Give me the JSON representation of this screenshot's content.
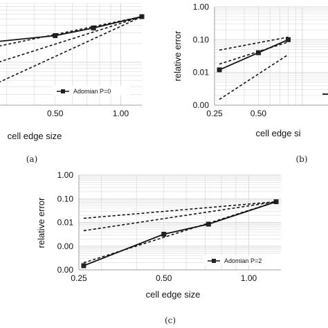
{
  "chart_data": [
    {
      "id": "a",
      "caption": "(a)",
      "type": "line",
      "xscale": "log",
      "yscale": "log",
      "xlabel": "cell edge size",
      "ylabel": "",
      "xticks": [
        "0.50",
        "1.00"
      ],
      "yticks": [],
      "legend": "Adomian P=0",
      "legend_position": "bottom-right",
      "series": [
        {
          "name": "Adomian P=0",
          "style": "solid-square",
          "x": [
            0.25,
            0.5,
            0.75,
            1.25
          ],
          "y": [
            0.21,
            0.27,
            0.36,
            0.55
          ]
        },
        {
          "style": "dashed",
          "x": [
            0.25,
            1.25
          ],
          "y": [
            0.17,
            0.55
          ]
        },
        {
          "style": "dashed",
          "x": [
            0.25,
            1.25
          ],
          "y": [
            0.09,
            0.55
          ]
        },
        {
          "style": "dashed",
          "x": [
            0.25,
            1.25
          ],
          "y": [
            0.04,
            0.55
          ]
        }
      ]
    },
    {
      "id": "b",
      "caption": "(b)",
      "type": "line",
      "xscale": "log",
      "yscale": "log",
      "xlabel": "cell edge si",
      "ylabel": "relative error",
      "xticks": [
        "0.25",
        "0.50"
      ],
      "yticks": [
        "1.00",
        "0.10",
        "0.01",
        "0.00"
      ],
      "series": [
        {
          "style": "solid-square",
          "x": [
            0.27,
            0.5,
            0.8
          ],
          "y": [
            0.012,
            0.04,
            0.1
          ]
        },
        {
          "style": "dashed",
          "x": [
            0.27,
            0.8
          ],
          "y": [
            0.048,
            0.12
          ]
        },
        {
          "style": "dashed",
          "x": [
            0.27,
            0.8
          ],
          "y": [
            0.018,
            0.085
          ]
        },
        {
          "style": "dashed",
          "x": [
            0.27,
            0.8
          ],
          "y": [
            0.0015,
            0.035
          ]
        }
      ]
    },
    {
      "id": "c",
      "caption": "(c)",
      "type": "line",
      "xscale": "log",
      "yscale": "log",
      "xlabel": "cell edge size",
      "ylabel": "relative error",
      "xticks": [
        "0.25",
        "0.50",
        "1.00"
      ],
      "yticks": [
        "1.00",
        "0.10",
        "0.01",
        "0.00",
        "0.00"
      ],
      "legend": "Adomian P=2",
      "legend_position": "bottom-right",
      "series": [
        {
          "name": "Adomian P=2",
          "style": "solid-square",
          "x": [
            0.26,
            0.5,
            0.72,
            1.25
          ],
          "y": [
            0.00015,
            0.0032,
            0.0085,
            0.075
          ]
        },
        {
          "style": "dashed",
          "x": [
            0.26,
            1.25
          ],
          "y": [
            0.015,
            0.075
          ]
        },
        {
          "style": "dashed",
          "x": [
            0.26,
            1.25
          ],
          "y": [
            0.0045,
            0.075
          ]
        },
        {
          "style": "dashed",
          "x": [
            0.26,
            1.25
          ],
          "y": [
            0.0002,
            0.075
          ]
        }
      ]
    }
  ],
  "colors": {
    "line": "#111111",
    "grid": "#d9d9d9",
    "marker": "#222222"
  }
}
